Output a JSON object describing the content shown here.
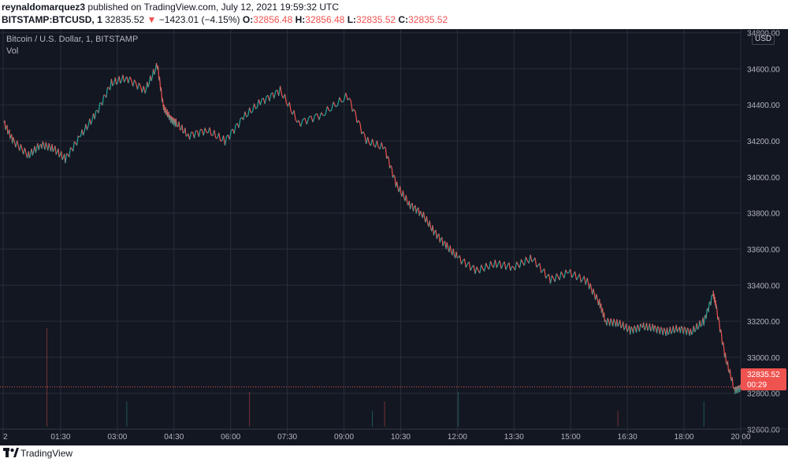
{
  "header": {
    "author": "reynaldomarquez3",
    "publish_text": "published on TradingView.com, July 12, 2021 19:59:32 UTC",
    "symbol": "BITSTAMP:BTCUSD, 1",
    "last_price": "32835.52",
    "change_arrow": "▼",
    "change": "−1423.01 (−4.15%)",
    "open_label": "O:",
    "open": "32856.48",
    "high_label": "H:",
    "high": "32856.48",
    "low_label": "L:",
    "low": "32835.52",
    "close_label": "C:",
    "close": "32835.52"
  },
  "legend": {
    "title": "Bitcoin / U.S. Dollar, 1, BITSTAMP",
    "volume": "Vol"
  },
  "price_axis": {
    "currency": "USD",
    "current_price": "32835.52",
    "countdown": "00:29"
  },
  "footer": {
    "brand": "TradingView"
  },
  "colors": {
    "background": "#131722",
    "grid": "#2a2e39",
    "up": "#26a69a",
    "down": "#ef5350",
    "text": "#b2b5be"
  },
  "chart_data": {
    "type": "line",
    "title": "Bitcoin / U.S. Dollar, 1, BITSTAMP",
    "xlabel": "",
    "ylabel": "",
    "x_ticks": [
      "2",
      "01:30",
      "03:00",
      "04:30",
      "06:00",
      "07:30",
      "09:00",
      "10:30",
      "12:00",
      "13:30",
      "15:00",
      "16:30",
      "18:00",
      "20:00"
    ],
    "y_ticks": [
      "34800.00",
      "34600.00",
      "34400.00",
      "34200.00",
      "34000.00",
      "33800.00",
      "33600.00",
      "33400.00",
      "33200.00",
      "33000.00",
      "32800.00",
      "32600.00"
    ],
    "ylim": [
      32550,
      34820
    ],
    "xlim": [
      0,
      1200
    ],
    "grid": true,
    "series": [
      {
        "x": [
          0,
          15,
          40,
          60,
          80,
          100,
          125,
          150,
          175,
          200,
          230,
          250,
          260,
          270,
          280,
          300,
          330,
          360,
          390,
          420,
          450,
          480,
          520,
          560,
          590,
          620,
          640,
          660,
          680,
          700,
          720,
          740,
          770,
          800,
          830,
          860,
          890,
          920,
          950,
          970,
          980,
          1000,
          1020,
          1040,
          1060,
          1080,
          1100,
          1120,
          1140,
          1155,
          1160,
          1175,
          1190,
          1200
        ],
        "y": [
          34300,
          34200,
          34120,
          34180,
          34160,
          34100,
          34230,
          34350,
          34520,
          34550,
          34480,
          34620,
          34380,
          34330,
          34300,
          34230,
          34260,
          34200,
          34330,
          34420,
          34480,
          34300,
          34350,
          34450,
          34200,
          34160,
          33950,
          33850,
          33800,
          33700,
          33620,
          33550,
          33480,
          33520,
          33500,
          33550,
          33430,
          33470,
          33420,
          33300,
          33200,
          33190,
          33150,
          33170,
          33160,
          33140,
          33160,
          33140,
          33200,
          33350,
          33280,
          33000,
          32820,
          32835
        ]
      }
    ],
    "volume_spikes_x": [
      70,
      200,
      400,
      600,
      620,
      740,
      1000,
      1140
    ]
  }
}
